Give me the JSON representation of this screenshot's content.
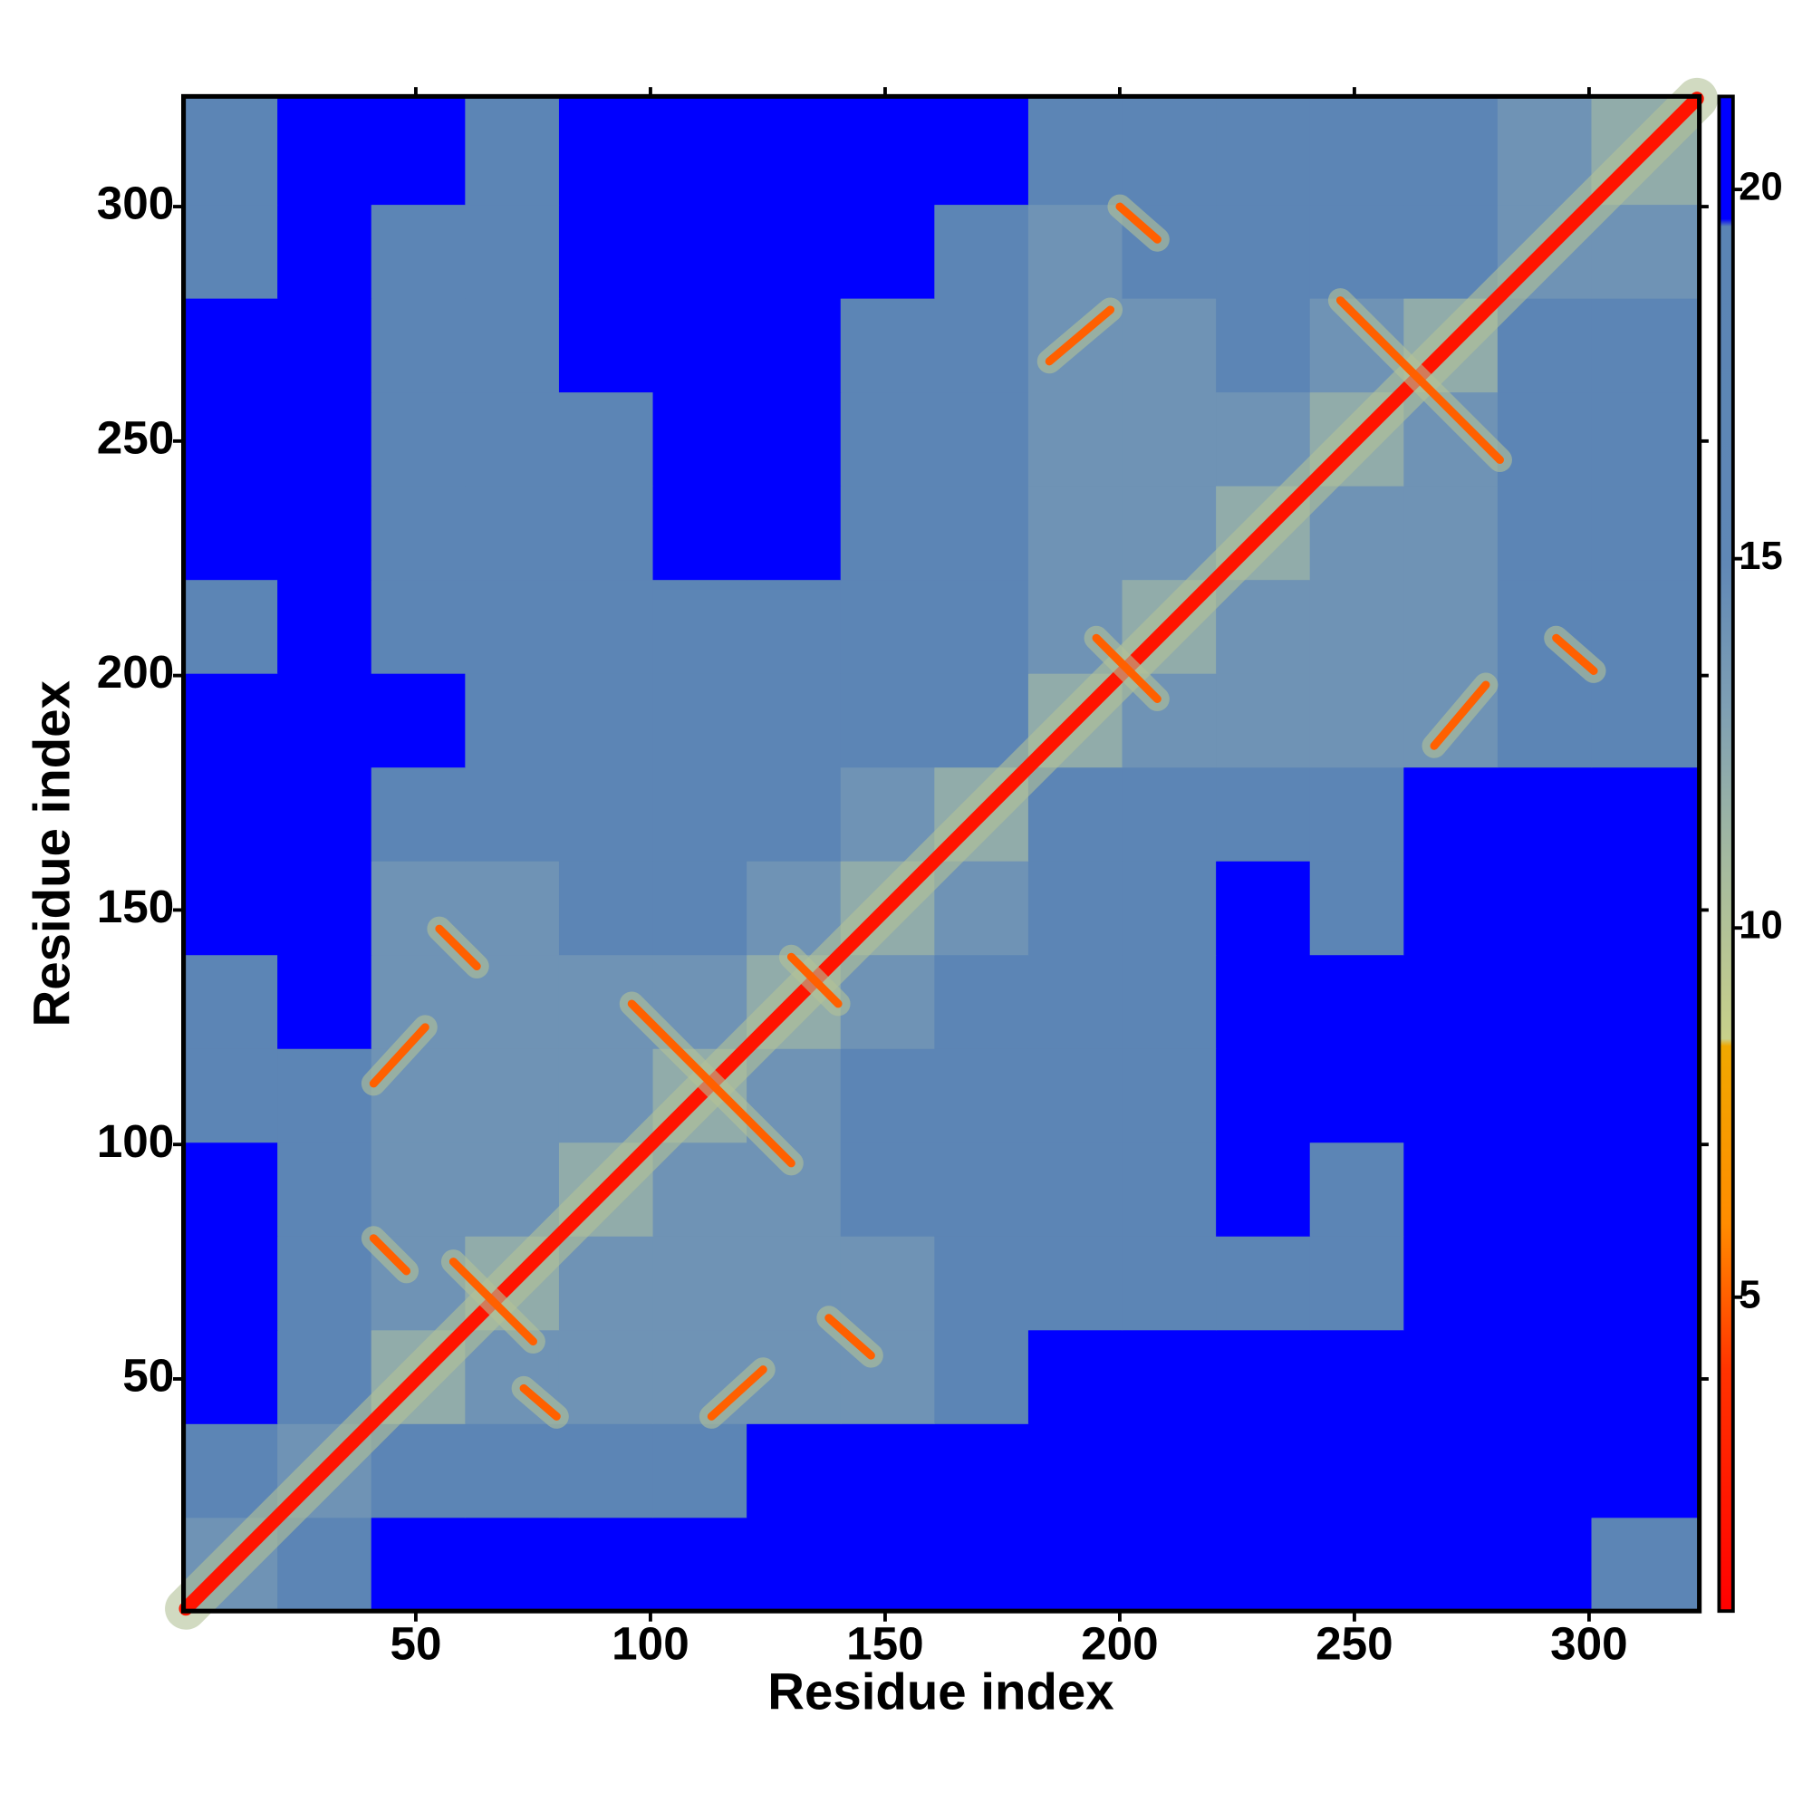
{
  "chart_data": {
    "type": "heatmap",
    "xlabel": "Residue index",
    "ylabel": "Residue index",
    "xlim": [
      0.5,
      323.5
    ],
    "ylim": [
      0.5,
      323.5
    ],
    "xticks": [
      50,
      100,
      150,
      200,
      250,
      300
    ],
    "yticks": [
      50,
      100,
      150,
      200,
      250,
      300
    ],
    "bins": [
      0.5,
      20.5,
      40.5,
      60.5,
      80.5,
      100.5,
      120.5,
      140.5,
      160.5,
      180.5,
      200.5,
      220.5,
      240.5,
      260.5,
      280.5,
      300.5,
      323.5
    ],
    "values": [
      [
        14,
        18,
        21,
        21,
        21,
        21,
        21,
        21,
        21,
        21,
        21,
        21,
        21,
        21,
        21,
        18
      ],
      [
        18,
        14,
        18,
        18,
        18,
        18,
        21,
        21,
        21,
        21,
        21,
        21,
        21,
        21,
        21,
        21
      ],
      [
        21,
        18,
        12,
        14,
        14,
        14,
        14,
        14,
        18,
        21,
        21,
        21,
        21,
        21,
        21,
        21
      ],
      [
        21,
        18,
        14,
        12,
        14,
        14,
        14,
        14,
        18,
        18,
        18,
        18,
        18,
        21,
        21,
        21
      ],
      [
        21,
        18,
        14,
        14,
        12,
        14,
        14,
        18,
        18,
        18,
        18,
        21,
        18,
        21,
        21,
        21
      ],
      [
        18,
        18,
        14,
        14,
        14,
        12,
        14,
        18,
        18,
        18,
        18,
        21,
        21,
        21,
        21,
        21
      ],
      [
        18,
        21,
        14,
        14,
        14,
        14,
        12,
        14,
        18,
        18,
        18,
        21,
        21,
        21,
        21,
        21
      ],
      [
        21,
        21,
        14,
        14,
        18,
        18,
        14,
        12,
        14,
        18,
        18,
        21,
        18,
        21,
        21,
        21
      ],
      [
        21,
        21,
        18,
        18,
        18,
        18,
        18,
        14,
        12,
        18,
        18,
        18,
        18,
        21,
        21,
        21
      ],
      [
        21,
        21,
        21,
        18,
        18,
        18,
        18,
        18,
        18,
        12,
        14,
        14,
        14,
        14,
        18,
        18
      ],
      [
        18,
        21,
        18,
        18,
        18,
        18,
        18,
        18,
        18,
        14,
        12,
        14,
        14,
        14,
        18,
        18
      ],
      [
        21,
        21,
        18,
        18,
        18,
        21,
        21,
        18,
        18,
        14,
        14,
        12,
        14,
        14,
        18,
        18
      ],
      [
        21,
        21,
        18,
        18,
        18,
        21,
        21,
        18,
        18,
        14,
        14,
        14,
        12,
        14,
        18,
        18
      ],
      [
        21,
        21,
        18,
        18,
        21,
        21,
        21,
        18,
        18,
        14,
        14,
        18,
        14,
        12,
        18,
        18
      ],
      [
        18,
        21,
        18,
        18,
        21,
        21,
        21,
        21,
        18,
        14,
        18,
        18,
        18,
        18,
        14,
        14
      ],
      [
        18,
        21,
        21,
        18,
        21,
        21,
        21,
        21,
        21,
        18,
        18,
        18,
        18,
        18,
        14,
        12
      ]
    ],
    "segments": [
      {
        "x": [
          1,
          323
        ],
        "y": [
          1,
          323
        ],
        "value": 2
      },
      {
        "x": [
          113,
          124
        ],
        "y": [
          42,
          52
        ],
        "value": 5
      },
      {
        "x": [
          41,
          52
        ],
        "y": [
          113,
          125
        ],
        "value": 5
      },
      {
        "x": [
          138,
          147
        ],
        "y": [
          63,
          55
        ],
        "value": 5
      },
      {
        "x": [
          55,
          63
        ],
        "y": [
          146,
          138
        ],
        "value": 5
      },
      {
        "x": [
          96,
          130
        ],
        "y": [
          130,
          96
        ],
        "value": 5
      },
      {
        "x": [
          73,
          80
        ],
        "y": [
          48,
          42
        ],
        "value": 5
      },
      {
        "x": [
          41,
          48
        ],
        "y": [
          80,
          73
        ],
        "value": 5
      },
      {
        "x": [
          185,
          198
        ],
        "y": [
          267,
          278
        ],
        "value": 5
      },
      {
        "x": [
          267,
          278
        ],
        "y": [
          185,
          198
        ],
        "value": 5
      },
      {
        "x": [
          200,
          208
        ],
        "y": [
          300,
          293
        ],
        "value": 5
      },
      {
        "x": [
          293,
          301
        ],
        "y": [
          208,
          201
        ],
        "value": 5
      },
      {
        "x": [
          247,
          281
        ],
        "y": [
          280,
          246
        ],
        "value": 5
      },
      {
        "x": [
          195,
          208
        ],
        "y": [
          208,
          195
        ],
        "value": 5
      },
      {
        "x": [
          58,
          75
        ],
        "y": [
          75,
          58
        ],
        "value": 5
      },
      {
        "x": [
          130,
          140
        ],
        "y": [
          140,
          130
        ],
        "value": 5
      }
    ],
    "colorscale": [
      [
        0.75,
        "#ff0000"
      ],
      [
        4,
        "#ff3300"
      ],
      [
        6,
        "#ff8c00"
      ],
      [
        8.4,
        "#f0a800"
      ],
      [
        8.5,
        "#c8d08a"
      ],
      [
        11,
        "#a3b9a0"
      ],
      [
        13,
        "#7e9fb4"
      ],
      [
        15,
        "#5f87b6"
      ],
      [
        19.5,
        "#5a84b4"
      ],
      [
        19.6,
        "#0000ff"
      ],
      [
        21.26,
        "#0000ff"
      ]
    ],
    "colorbar_lim": [
      0.75,
      21.26
    ],
    "colorbar_ticks": [
      5,
      10,
      15,
      20
    ]
  }
}
